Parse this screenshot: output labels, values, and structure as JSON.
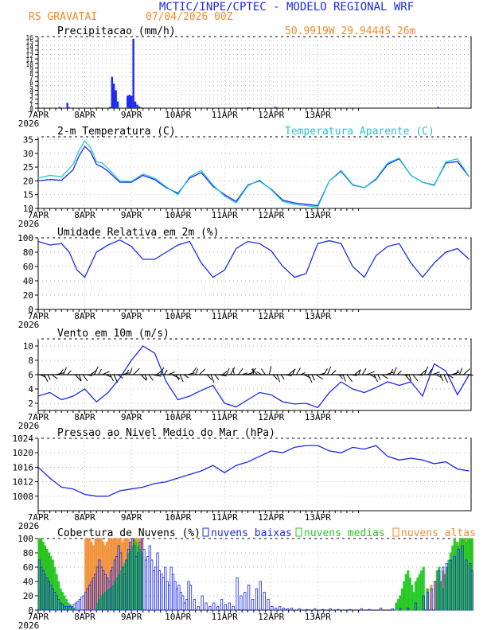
{
  "header": {
    "title": "MCTIC/INPE/CPTEC - MODELO REGIONAL WRF",
    "station": "RS GRAVATAI",
    "run": "07/04/2026 00Z",
    "location": "50.9919W 29.9444S 26m"
  },
  "colors": {
    "blue": "#1c28ee",
    "cyan": "#1ec8d6",
    "orange": "#f08a2c",
    "green": "#1ec81e",
    "grid": "#9a9a9a"
  },
  "chart_data": [
    {
      "id": "precip",
      "type": "bar",
      "title": "Precipitacao (mm/h)",
      "ylim": [
        0,
        16
      ],
      "yticks": [
        "0",
        "1",
        "2",
        "3",
        "4",
        "5",
        "6",
        "7",
        "8",
        "9",
        "10",
        "11",
        "12",
        "13",
        "14",
        "15",
        "16"
      ],
      "xticks": [
        "7APR",
        "8APR",
        "9APR",
        "10APR",
        "11APR",
        "12APR",
        "13APR"
      ],
      "xyear": "2026",
      "x": [
        11,
        15,
        16,
        31,
        37,
        38,
        39,
        40,
        41,
        46,
        47,
        48,
        49,
        50,
        51,
        52,
        53,
        108,
        109,
        122,
        123,
        206
      ],
      "values": [
        0.3,
        1.2,
        0.2,
        0.2,
        0.3,
        7.0,
        5.5,
        4.0,
        1.5,
        2.8,
        3.0,
        2.8,
        15.5,
        1.5,
        0.8,
        0.4,
        0.2,
        0.2,
        0.2,
        0.3,
        0.2,
        0.3
      ]
    },
    {
      "id": "temp",
      "type": "line",
      "title": "2-m Temperatura (C)",
      "legend": "Temperatura Aparente (C)",
      "ylim": [
        10,
        36
      ],
      "yticks": [
        "10",
        "15",
        "20",
        "25",
        "30",
        "35"
      ],
      "xticks": [
        "7APR",
        "8APR",
        "9APR",
        "10APR",
        "11APR",
        "12APR",
        "13APR"
      ],
      "xyear": "2026",
      "series": [
        {
          "color": "#1c28ee",
          "x": [
            0,
            6,
            12,
            18,
            21,
            24,
            27,
            30,
            33,
            36,
            42,
            48,
            54,
            60,
            66,
            72,
            78,
            84,
            90,
            96,
            102,
            108,
            114,
            120,
            126,
            132,
            138,
            144,
            150,
            156,
            162,
            168,
            174,
            180,
            186,
            192,
            198,
            204,
            210,
            216,
            222
          ],
          "y": [
            20,
            20.5,
            20.2,
            24,
            29,
            32.5,
            30.5,
            26,
            25,
            23.5,
            19.5,
            19.5,
            22,
            20.5,
            17.5,
            15.5,
            21,
            23,
            18,
            15,
            12.5,
            18.5,
            20,
            17,
            13,
            12,
            11.5,
            11,
            20,
            23.5,
            18.5,
            17.5,
            20.5,
            26,
            28,
            22,
            19.5,
            18.5,
            26.5,
            27,
            21.5
          ]
        },
        {
          "color": "#1ec8d6",
          "x": [
            0,
            6,
            12,
            18,
            21,
            24,
            27,
            30,
            33,
            36,
            42,
            48,
            54,
            60,
            66,
            72,
            78,
            84,
            90,
            96,
            102,
            108,
            114,
            120,
            126,
            132,
            138,
            144,
            150,
            156,
            162,
            168,
            174,
            180,
            186,
            192,
            198,
            204,
            210,
            216,
            222
          ],
          "y": [
            21,
            22,
            21.5,
            26,
            31,
            34.5,
            32,
            27,
            26.5,
            24.5,
            20,
            19.8,
            22.5,
            21,
            17.8,
            15,
            21.5,
            23.8,
            18.5,
            14.5,
            12,
            18.2,
            20.3,
            16.8,
            12.5,
            11.5,
            11,
            10.5,
            20,
            23.8,
            18.7,
            17.5,
            20.8,
            26.5,
            28.3,
            22,
            19.5,
            18.3,
            27,
            28,
            21.5
          ]
        }
      ]
    },
    {
      "id": "rh",
      "type": "line",
      "title": "Umidade Relativa em 2m (%)",
      "ylim": [
        0,
        100
      ],
      "yticks": [
        "0",
        "20",
        "40",
        "60",
        "80",
        "100"
      ],
      "xticks": [
        "7APR",
        "8APR",
        "9APR",
        "10APR",
        "11APR",
        "12APR",
        "13APR"
      ],
      "xyear": "2026",
      "series": [
        {
          "color": "#1c28ee",
          "x": [
            0,
            6,
            12,
            16,
            20,
            24,
            30,
            36,
            42,
            48,
            54,
            60,
            66,
            72,
            78,
            84,
            90,
            96,
            102,
            108,
            114,
            120,
            126,
            132,
            138,
            144,
            150,
            156,
            162,
            168,
            174,
            180,
            186,
            192,
            198,
            204,
            210,
            216,
            222
          ],
          "y": [
            95,
            90,
            92,
            80,
            55,
            45,
            80,
            90,
            97,
            88,
            70,
            70,
            80,
            90,
            95,
            65,
            45,
            55,
            85,
            95,
            92,
            82,
            60,
            45,
            50,
            92,
            96,
            92,
            60,
            45,
            75,
            88,
            92,
            65,
            45,
            65,
            80,
            85,
            70
          ]
        }
      ]
    },
    {
      "id": "wind",
      "type": "line",
      "title": "Vento em 10m (m/s)",
      "ylim": [
        1,
        11
      ],
      "yticks": [
        "2",
        "4",
        "6",
        "8",
        "10"
      ],
      "xticks": [
        "7APR",
        "8APR",
        "9APR",
        "10APR",
        "11APR",
        "12APR",
        "13APR"
      ],
      "xyear": "2026",
      "series": [
        {
          "color": "#1c28ee",
          "x": [
            0,
            6,
            12,
            18,
            24,
            30,
            36,
            42,
            48,
            54,
            60,
            66,
            72,
            78,
            84,
            90,
            96,
            102,
            108,
            114,
            120,
            126,
            132,
            138,
            144,
            150,
            156,
            162,
            168,
            174,
            180,
            186,
            192,
            198,
            204,
            210,
            216,
            222
          ],
          "y": [
            3,
            3.5,
            2.5,
            3,
            4,
            2.2,
            3.5,
            5.5,
            8,
            10,
            9,
            5,
            2.5,
            3,
            3.8,
            4.5,
            2,
            1.5,
            2.5,
            3.5,
            3.2,
            2.2,
            1.9,
            2,
            1.4,
            3.5,
            5,
            4,
            3.5,
            4.2,
            5,
            4.5,
            5,
            3,
            7.5,
            6.5,
            3.2,
            6
          ]
        }
      ],
      "barb_directions": "arrows plotted along the 6 m/s line"
    },
    {
      "id": "pres",
      "type": "line",
      "title": "Pressao ao Nivel Medio do Mar (hPa)",
      "ylim": [
        1004,
        1024
      ],
      "yticks": [
        "1008",
        "1012",
        "1016",
        "1020",
        "1024"
      ],
      "xticks": [
        "7APR",
        "8APR",
        "9APR",
        "10APR",
        "11APR",
        "12APR",
        "13APR"
      ],
      "xyear": "2026",
      "series": [
        {
          "color": "#1c28ee",
          "x": [
            0,
            6,
            12,
            18,
            24,
            30,
            36,
            42,
            48,
            54,
            60,
            66,
            72,
            78,
            84,
            90,
            96,
            102,
            108,
            114,
            120,
            126,
            132,
            138,
            144,
            150,
            156,
            162,
            168,
            174,
            180,
            186,
            192,
            198,
            204,
            210,
            216,
            222
          ],
          "y": [
            1016,
            1013,
            1010.5,
            1010,
            1008.5,
            1008,
            1008,
            1009.5,
            1010,
            1010.5,
            1011.5,
            1012,
            1013,
            1014,
            1015,
            1016.5,
            1014.5,
            1016.5,
            1017.5,
            1019,
            1020.5,
            1020,
            1021.5,
            1022,
            1022,
            1020.5,
            1020,
            1021.5,
            1021,
            1022,
            1019,
            1018,
            1018.5,
            1018,
            1017,
            1017.5,
            1015.5,
            1015
          ]
        }
      ]
    },
    {
      "id": "clouds",
      "type": "bar",
      "title": "Cobertura de Nuvens (%)",
      "legend": [
        "nuvens baixas",
        "nuvens medias",
        "nuvens altas"
      ],
      "ylim": [
        0,
        100
      ],
      "yticks": [
        "0",
        "20",
        "40",
        "60",
        "80",
        "100"
      ],
      "xticks": [
        "7APR",
        "8APR",
        "9APR",
        "10APR",
        "11APR",
        "12APR",
        "13APR"
      ],
      "xyear": "2026",
      "high": {
        "x": [
          0,
          1,
          2,
          3,
          4,
          5,
          6,
          7,
          24,
          25,
          26,
          27,
          28,
          29,
          30,
          31,
          32,
          33,
          34,
          35,
          36,
          37,
          38,
          39,
          40,
          41,
          42,
          43,
          44,
          45,
          46,
          47,
          48,
          49,
          50,
          51,
          52,
          53,
          184,
          186,
          188,
          190,
          198,
          200,
          202,
          204,
          206,
          208,
          210,
          212,
          214,
          216,
          218,
          220,
          222,
          223
        ],
        "values": [
          100,
          100,
          95,
          90,
          85,
          80,
          70,
          55,
          100,
          100,
          100,
          95,
          90,
          100,
          100,
          100,
          100,
          95,
          90,
          95,
          100,
          100,
          100,
          100,
          100,
          100,
          100,
          95,
          100,
          100,
          100,
          95,
          100,
          100,
          100,
          100,
          100,
          100,
          10,
          20,
          30,
          15,
          20,
          30,
          35,
          40,
          45,
          55,
          60,
          70,
          80,
          95,
          100,
          100,
          100,
          100
        ]
      },
      "mid": {
        "x": [
          0,
          1,
          2,
          3,
          4,
          5,
          6,
          7,
          8,
          9,
          10,
          11,
          12,
          13,
          14,
          15,
          16,
          17,
          18,
          30,
          31,
          32,
          33,
          34,
          35,
          36,
          37,
          38,
          39,
          40,
          41,
          42,
          43,
          44,
          45,
          46,
          47,
          48,
          49,
          50,
          51,
          52,
          53,
          184,
          185,
          186,
          187,
          188,
          189,
          190,
          191,
          192,
          193,
          194,
          195,
          196,
          197,
          198,
          200,
          205,
          206,
          207,
          208,
          209,
          210,
          211,
          212,
          213,
          214,
          215,
          216,
          217,
          218,
          219,
          220,
          221,
          222,
          223
        ],
        "values": [
          100,
          100,
          95,
          90,
          85,
          80,
          75,
          70,
          60,
          50,
          40,
          30,
          25,
          20,
          15,
          10,
          8,
          5,
          3,
          10,
          15,
          20,
          22,
          25,
          28,
          30,
          32,
          35,
          40,
          45,
          50,
          55,
          60,
          65,
          70,
          80,
          85,
          90,
          100,
          95,
          90,
          85,
          80,
          10,
          15,
          20,
          30,
          40,
          50,
          55,
          45,
          35,
          25,
          40,
          45,
          50,
          55,
          60,
          30,
          55,
          60,
          40,
          30,
          50,
          60,
          70,
          80,
          90,
          100,
          95,
          90,
          100,
          100,
          100,
          95,
          100,
          100,
          100
        ]
      },
      "low": {
        "x": [
          0,
          1,
          2,
          3,
          4,
          5,
          6,
          7,
          8,
          9,
          10,
          11,
          12,
          13,
          14,
          15,
          16,
          17,
          18,
          19,
          20,
          21,
          22,
          23,
          24,
          25,
          26,
          27,
          28,
          29,
          30,
          31,
          32,
          33,
          34,
          35,
          36,
          37,
          38,
          39,
          40,
          41,
          42,
          43,
          44,
          45,
          46,
          47,
          48,
          49,
          50,
          51,
          52,
          53,
          54,
          55,
          56,
          57,
          58,
          59,
          60,
          61,
          62,
          63,
          64,
          65,
          66,
          67,
          68,
          69,
          70,
          71,
          72,
          73,
          74,
          75,
          76,
          77,
          78,
          80,
          82,
          84,
          86,
          88,
          90,
          92,
          94,
          96,
          98,
          100,
          102,
          104,
          106,
          108,
          110,
          112,
          114,
          116,
          118,
          120,
          122,
          124,
          126,
          128,
          130,
          134,
          138,
          142,
          146,
          150,
          154,
          160,
          166,
          170,
          176,
          182,
          186,
          190,
          194,
          198,
          200,
          202,
          204,
          206,
          208,
          210,
          212,
          214,
          216,
          218,
          220,
          222,
          223
        ],
        "values": [
          70,
          60,
          55,
          50,
          45,
          40,
          35,
          30,
          25,
          20,
          15,
          10,
          8,
          5,
          5,
          5,
          5,
          5,
          8,
          10,
          12,
          15,
          18,
          20,
          25,
          30,
          35,
          40,
          45,
          50,
          60,
          70,
          60,
          55,
          50,
          45,
          40,
          55,
          60,
          70,
          75,
          90,
          80,
          60,
          50,
          70,
          85,
          95,
          100,
          90,
          75,
          80,
          95,
          100,
          85,
          70,
          75,
          90,
          70,
          55,
          60,
          80,
          55,
          50,
          45,
          60,
          40,
          35,
          60,
          50,
          40,
          30,
          35,
          25,
          20,
          10,
          15,
          40,
          35,
          15,
          5,
          20,
          10,
          5,
          10,
          5,
          15,
          8,
          10,
          5,
          45,
          20,
          25,
          35,
          15,
          30,
          40,
          25,
          15,
          5,
          3,
          5,
          3,
          2,
          3,
          2,
          1,
          2,
          1,
          2,
          1,
          1,
          2,
          1,
          3,
          2,
          2,
          3,
          10,
          20,
          25,
          30,
          40,
          55,
          60,
          65,
          70,
          75,
          85,
          90,
          70,
          65,
          55
        ]
      }
    }
  ]
}
